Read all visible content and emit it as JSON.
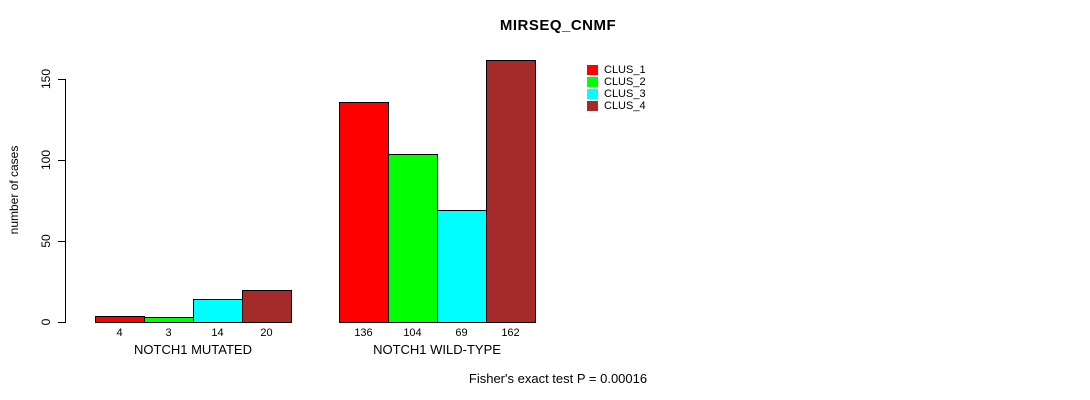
{
  "title": "MIRSEQ_CNMF",
  "footer_note": "Fisher's exact test P = 0.00016",
  "colors": {
    "clus_1": "#FF0000",
    "clus_2": "#00FF00",
    "clus_3": "#00FFFF",
    "clus_4": "#A52A2A",
    "axis": "#000000",
    "background": "#FFFFFF"
  },
  "legend": [
    {
      "label": "CLUS_1",
      "color": "#FF0000"
    },
    {
      "label": "CLUS_2",
      "color": "#00FF00"
    },
    {
      "label": "CLUS_3",
      "color": "#00FFFF"
    },
    {
      "label": "CLUS_4",
      "color": "#A52A2A"
    }
  ],
  "chart_data": {
    "type": "bar",
    "title": "MIRSEQ_CNMF",
    "xlabel": "",
    "ylabel": "number of cases",
    "categories": [
      "NOTCH1 MUTATED",
      "NOTCH1 WILD-TYPE"
    ],
    "series": [
      {
        "name": "CLUS_1",
        "color": "#FF0000",
        "values": [
          4,
          136
        ]
      },
      {
        "name": "CLUS_2",
        "color": "#00FF00",
        "values": [
          3,
          104
        ]
      },
      {
        "name": "CLUS_3",
        "color": "#00FFFF",
        "values": [
          14,
          69
        ]
      },
      {
        "name": "CLUS_4",
        "color": "#A52A2A",
        "values": [
          20,
          162
        ]
      }
    ],
    "bar_value_labels": [
      [
        4,
        3,
        14,
        20
      ],
      [
        136,
        104,
        69,
        162
      ]
    ],
    "yticks": [
      0,
      50,
      100,
      150
    ],
    "ylim": [
      0,
      165
    ],
    "grid": false,
    "legend_position": "top-right",
    "annotation": "Fisher's exact test P = 0.00016"
  }
}
